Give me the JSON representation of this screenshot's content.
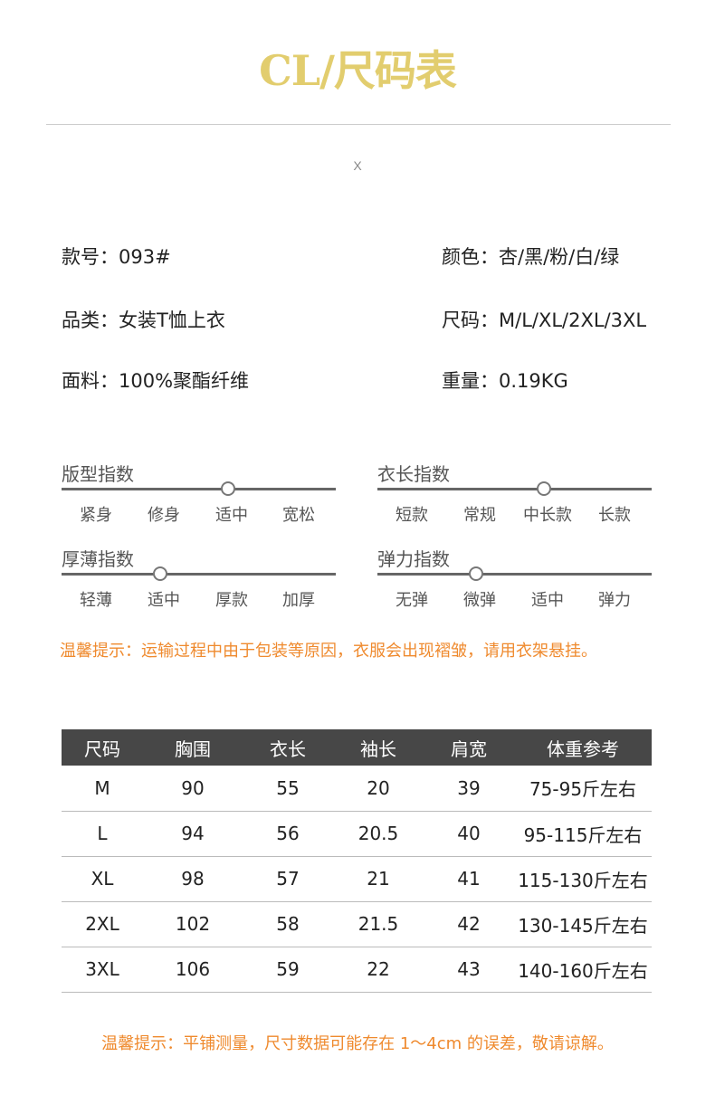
{
  "title": "CL/尺码表",
  "divider_mark": "X",
  "info": {
    "style_no": "款号：093#",
    "colors": "颜色：杏/黑/粉/白/绿",
    "category": "品类：女装T恤上衣",
    "sizes": "尺码：M/L/XL/2XL/3XL",
    "fabric": "面料：100%聚酯纤维",
    "weight": "重量：0.19KG"
  },
  "sliders": [
    {
      "title": "版型指数",
      "options": [
        "紧身",
        "修身",
        "适中",
        "宽松"
      ],
      "selected_index": 2
    },
    {
      "title": "衣长指数",
      "options": [
        "短款",
        "常规",
        "中长款",
        "长款"
      ],
      "selected_index": 2
    },
    {
      "title": "厚薄指数",
      "options": [
        "轻薄",
        "适中",
        "厚款",
        "加厚"
      ],
      "selected_index": 1
    },
    {
      "title": "弹力指数",
      "options": [
        "无弹",
        "微弹",
        "适中",
        "弹力"
      ],
      "selected_index": 1
    }
  ],
  "tip1": "温馨提示：运输过程中由于包装等原因，衣服会出现褶皱，请用衣架悬挂。",
  "table": {
    "headers": [
      "尺码",
      "胸围",
      "衣长",
      "袖长",
      "肩宽",
      "体重参考"
    ],
    "rows": [
      [
        "M",
        "90",
        "55",
        "20",
        "39",
        "75-95斤左右"
      ],
      [
        "L",
        "94",
        "56",
        "20.5",
        "40",
        "95-115斤左右"
      ],
      [
        "XL",
        "98",
        "57",
        "21",
        "41",
        "115-130斤左右"
      ],
      [
        "2XL",
        "102",
        "58",
        "21.5",
        "42",
        "130-145斤左右"
      ],
      [
        "3XL",
        "106",
        "59",
        "22",
        "43",
        "140-160斤左右"
      ]
    ]
  },
  "tip2": "温馨提示：平铺测量，尺寸数据可能存在 1～4cm 的误差，敬请谅解。",
  "colors": {
    "title": "#e2cd6e",
    "tip": "#ef8a2e",
    "table_header": "#474747"
  }
}
